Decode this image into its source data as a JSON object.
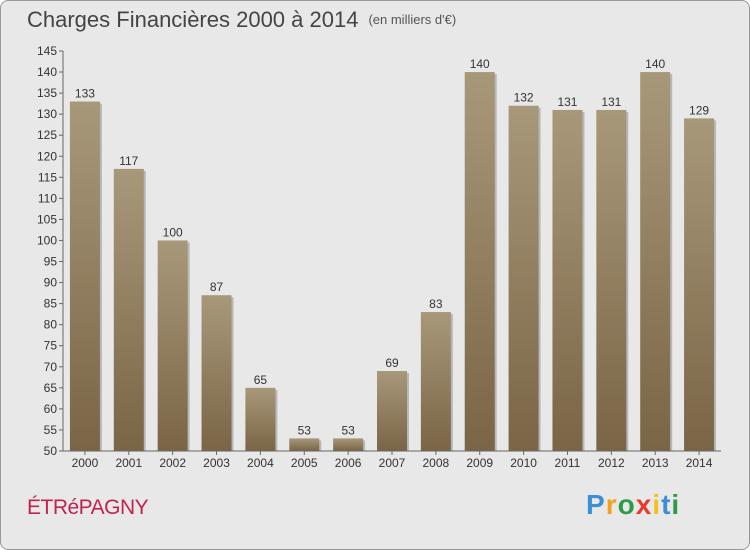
{
  "chart_data": {
    "type": "bar",
    "title": "Charges Financières 2000 à 2014",
    "subtitle": "(en milliers d'€)",
    "categories": [
      "2000",
      "2001",
      "2002",
      "2003",
      "2004",
      "2005",
      "2006",
      "2007",
      "2008",
      "2009",
      "2010",
      "2011",
      "2012",
      "2013",
      "2014"
    ],
    "values": [
      133,
      117,
      100,
      87,
      65,
      53,
      53,
      69,
      83,
      140,
      132,
      131,
      131,
      140,
      129
    ],
    "ylim": [
      50,
      145
    ],
    "yticks": [
      50,
      55,
      60,
      65,
      70,
      75,
      80,
      85,
      90,
      95,
      100,
      105,
      110,
      115,
      120,
      125,
      130,
      135,
      140,
      145
    ],
    "grid": false,
    "bar_color_top": "#a8987a",
    "bar_color_bottom": "#7a6546"
  },
  "commune": "ÉTRéPAGNY",
  "logo": {
    "letters": [
      "P",
      "r",
      "o",
      "x",
      "i",
      "t",
      "i"
    ],
    "colors": [
      "#3b8fd4",
      "#f2a21b",
      "#2e9a4a",
      "#e63c2e",
      "#f2c21b",
      "#3b8fd4",
      "#2e9a4a"
    ]
  }
}
